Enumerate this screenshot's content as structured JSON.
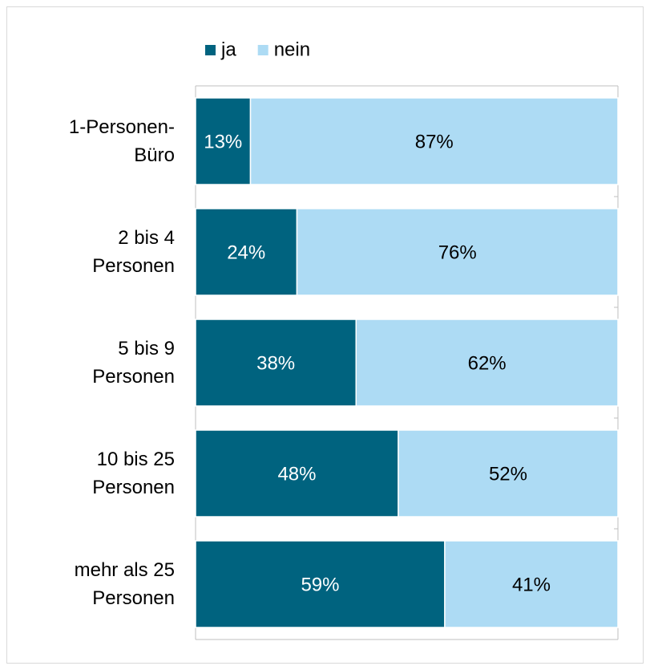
{
  "chart_data": {
    "type": "stacked_barh",
    "categories": [
      "1-Personen-\nBüro",
      "2 bis 4\nPersonen",
      "5 bis 9\nPersonen",
      "10 bis 25\nPersonen",
      "mehr als 25\nPersonen"
    ],
    "series": [
      {
        "name": "ja",
        "color": "#00637f",
        "values": [
          13,
          24,
          38,
          48,
          59
        ],
        "value_labels": [
          "13%",
          "24%",
          "38%",
          "48%",
          "59%"
        ]
      },
      {
        "name": "nein",
        "color": "#addbf4",
        "values": [
          87,
          76,
          62,
          52,
          41
        ],
        "value_labels": [
          "87%",
          "76%",
          "62%",
          "52%",
          "41%"
        ]
      }
    ],
    "xlim": [
      0,
      100
    ],
    "legend": "top"
  }
}
